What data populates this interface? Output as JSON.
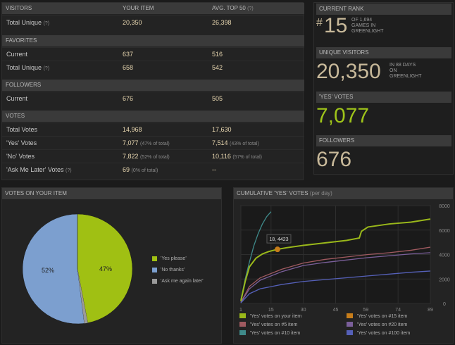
{
  "stats": {
    "headers": {
      "col0": "VISITORS",
      "col1": "YOUR ITEM",
      "col2": "AVG. TOP 50",
      "col2_note": "(?)"
    },
    "visitors_total": {
      "label": "Total Unique",
      "note": "(?)",
      "yours": "20,350",
      "avg": "26,398"
    },
    "favorites_header": "FAVORITES",
    "favorites_current": {
      "label": "Current",
      "yours": "637",
      "avg": "516"
    },
    "favorites_total": {
      "label": "Total Unique",
      "note": "(?)",
      "yours": "658",
      "avg": "542"
    },
    "followers_header": "FOLLOWERS",
    "followers_current": {
      "label": "Current",
      "yours": "676",
      "avg": "505"
    },
    "votes_header": "VOTES",
    "votes_total": {
      "label": "Total Votes",
      "yours": "14,968",
      "avg": "17,630"
    },
    "votes_yes": {
      "label": "'Yes' Votes",
      "yours": "7,077",
      "yours_pct": "(47% of total)",
      "avg": "7,514",
      "avg_pct": "(43% of total)"
    },
    "votes_no": {
      "label": "'No' Votes",
      "yours": "7,822",
      "yours_pct": "(52% of total)",
      "avg": "10,116",
      "avg_pct": "(57% of total)"
    },
    "votes_later": {
      "label": "'Ask Me Later' Votes",
      "note": "(?)",
      "yours": "69",
      "yours_pct": "(0% of total)",
      "avg": "--"
    }
  },
  "side": {
    "rank_header": "CURRENT RANK",
    "rank_hash": "#",
    "rank_value": "15",
    "rank_sub1": "OF 1,694",
    "rank_sub2": "GAMES IN",
    "rank_sub3": "GREENLIGHT",
    "visitors_header": "UNIQUE VISITORS",
    "visitors_value": "20,350",
    "visitors_sub1": "IN 88 DAYS",
    "visitors_sub2": "ON",
    "visitors_sub3": "GREENLIGHT",
    "yes_header": "'YES' VOTES",
    "yes_value": "7,077",
    "followers_header": "FOLLOWERS",
    "followers_value": "676"
  },
  "pie": {
    "header": "VOTES ON YOUR ITEM",
    "label_yes": "47%",
    "label_no": "52%",
    "legend": [
      "'Yes please'",
      "'No thanks'",
      "'Ask me again later'"
    ],
    "colors": [
      "#a0c013",
      "#7c9fcf",
      "#9a9a9a"
    ]
  },
  "chart_data": {
    "type": "line",
    "title": "CUMULATIVE 'YES' VOTES",
    "subtitle": "(per day)",
    "xticks": [
      "1",
      "15",
      "30",
      "45",
      "59",
      "74",
      "89"
    ],
    "yticks": [
      "0",
      "2000",
      "4000",
      "6000",
      "8000"
    ],
    "xlim": [
      1,
      89
    ],
    "ylim": [
      0,
      8000
    ],
    "tooltip": "18, 4423",
    "tooltip_point": [
      18,
      4423
    ],
    "series": [
      {
        "name": "'Yes' votes on your item",
        "color": "#9ab81a",
        "x": [
          1,
          3,
          5,
          8,
          11,
          14,
          18,
          22,
          30,
          40,
          50,
          56,
          57,
          60,
          70,
          80,
          89
        ],
        "y": [
          200,
          1800,
          3000,
          3700,
          4050,
          4250,
          4423,
          4550,
          4750,
          4950,
          5150,
          5350,
          5900,
          6250,
          6500,
          6650,
          6900
        ]
      },
      {
        "name": "'Yes' votes on #15 item",
        "color": "#c77d1a",
        "x": [
          18
        ],
        "y": [
          4423
        ]
      },
      {
        "name": "'Yes' votes on #5 item",
        "color": "#a05a60",
        "x": [
          1,
          5,
          10,
          20,
          30,
          40,
          50,
          60,
          70,
          80,
          89
        ],
        "y": [
          100,
          1400,
          2100,
          2800,
          3300,
          3600,
          3800,
          4000,
          4150,
          4350,
          4600
        ]
      },
      {
        "name": "'Yes' votes on #20 item",
        "color": "#7a5f9a",
        "x": [
          1,
          5,
          10,
          20,
          30,
          40,
          50,
          60,
          70,
          80,
          89
        ],
        "y": [
          80,
          1200,
          1900,
          2600,
          3100,
          3350,
          3550,
          3750,
          3900,
          4050,
          4150
        ]
      },
      {
        "name": "'Yes' votes on #10 item",
        "color": "#3f8a8a",
        "x": [
          1,
          3,
          5,
          7,
          9,
          11,
          13,
          15
        ],
        "y": [
          300,
          2000,
          3400,
          4700,
          5700,
          6500,
          7100,
          7500
        ]
      },
      {
        "name": "'Yes' votes on #100 item",
        "color": "#5560b8",
        "x": [
          1,
          5,
          10,
          20,
          30,
          40,
          50,
          60,
          70,
          80,
          89
        ],
        "y": [
          50,
          800,
          1200,
          1550,
          1800,
          1950,
          2100,
          2250,
          2400,
          2550,
          2650
        ]
      }
    ]
  }
}
